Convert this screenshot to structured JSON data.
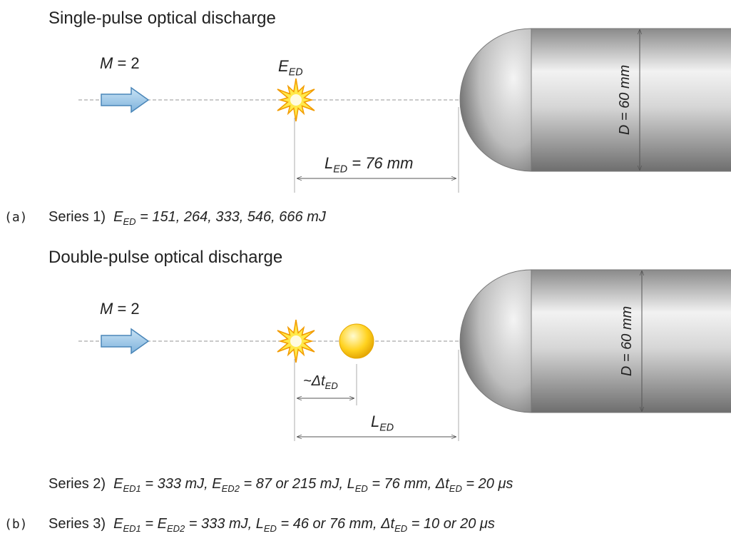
{
  "panel_a": {
    "title": "Single-pulse optical discharge",
    "label": "(a)",
    "mach": [
      "M",
      " = 2"
    ],
    "energy": [
      "E",
      "ED"
    ],
    "distance": [
      "L",
      "ED",
      " = 76 mm"
    ],
    "diameter": [
      "D = 60 mm"
    ],
    "series_1": {
      "label": "Series 1)",
      "terms": [
        [
          "E",
          "ED",
          " = 151, 264, 333, 546, 666 mJ"
        ]
      ]
    }
  },
  "panel_b": {
    "title": "Double-pulse optical discharge",
    "label": "(b)",
    "mach": [
      "M",
      " = 2"
    ],
    "delay": [
      "~Δt",
      "ED"
    ],
    "distance": [
      "L",
      "ED"
    ],
    "diameter": [
      "D = 60 mm"
    ],
    "series_2": {
      "label": "Series 2)",
      "terms": [
        [
          "E",
          "ED1",
          " = 333 mJ, "
        ],
        [
          "E",
          "ED2",
          " = 87 or 215 mJ, "
        ],
        [
          "L",
          "ED",
          " = 76 mm, "
        ],
        [
          "Δt",
          "ED",
          " = 20 μs"
        ]
      ]
    },
    "series_3": {
      "label": "Series 3)",
      "terms": [
        [
          "E",
          "ED1",
          " = "
        ],
        [
          "E",
          "ED2",
          " = 333 mJ, "
        ],
        [
          "L",
          "ED",
          " = 46 or 76 mm, "
        ],
        [
          "Δt",
          "ED",
          " = 10 or 20 μs"
        ]
      ]
    }
  }
}
